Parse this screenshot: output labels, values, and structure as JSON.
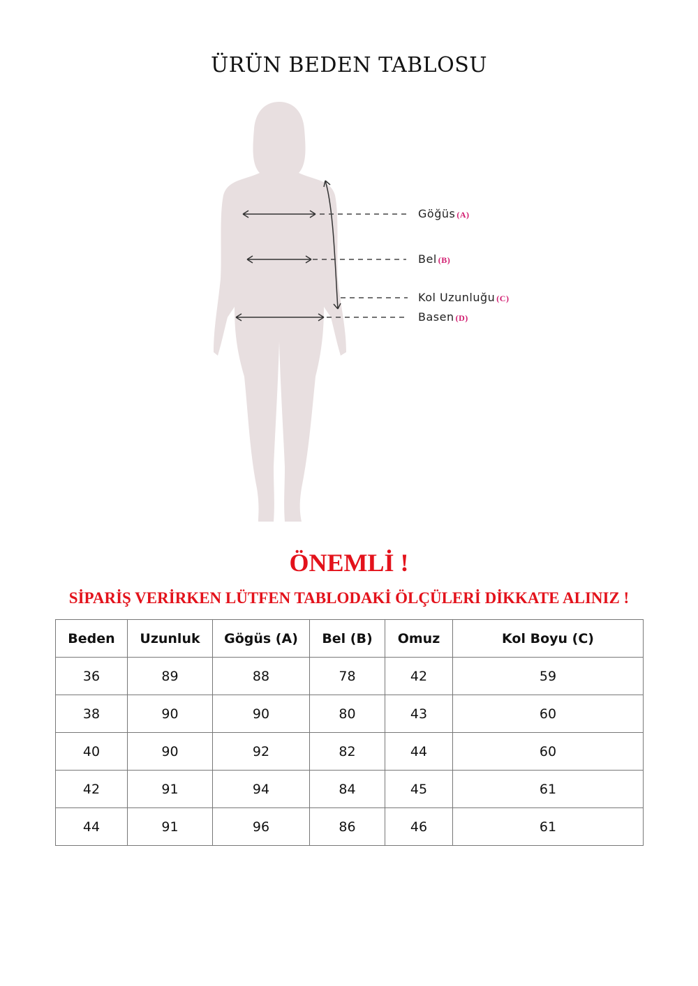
{
  "title": "ÜRÜN BEDEN TABLOSU",
  "figure": {
    "silhouette_color": "#e8dfe0",
    "labels": [
      {
        "text": "Göğüs",
        "code": "(A)"
      },
      {
        "text": "Bel",
        "code": "(B)"
      },
      {
        "text": "Kol Uzunluğu",
        "code": "(C)"
      },
      {
        "text": "Basen",
        "code": "(D)"
      }
    ]
  },
  "notice": {
    "heading": "ÖNEMLİ !",
    "message": "SİPARİŞ VERİRKEN LÜTFEN TABLODAKİ ÖLÇÜLERİ DİKKATE ALINIZ !",
    "color": "#e3121b"
  },
  "table": {
    "headers": [
      "Beden",
      "Uzunluk",
      "Gögüs (A)",
      "Bel (B)",
      "Omuz",
      "Kol Boyu (C)"
    ],
    "rows": [
      [
        "36",
        "89",
        "88",
        "78",
        "42",
        "59"
      ],
      [
        "38",
        "90",
        "90",
        "80",
        "43",
        "60"
      ],
      [
        "40",
        "90",
        "92",
        "82",
        "44",
        "60"
      ],
      [
        "42",
        "91",
        "94",
        "84",
        "45",
        "61"
      ],
      [
        "44",
        "91",
        "96",
        "86",
        "46",
        "61"
      ]
    ]
  }
}
